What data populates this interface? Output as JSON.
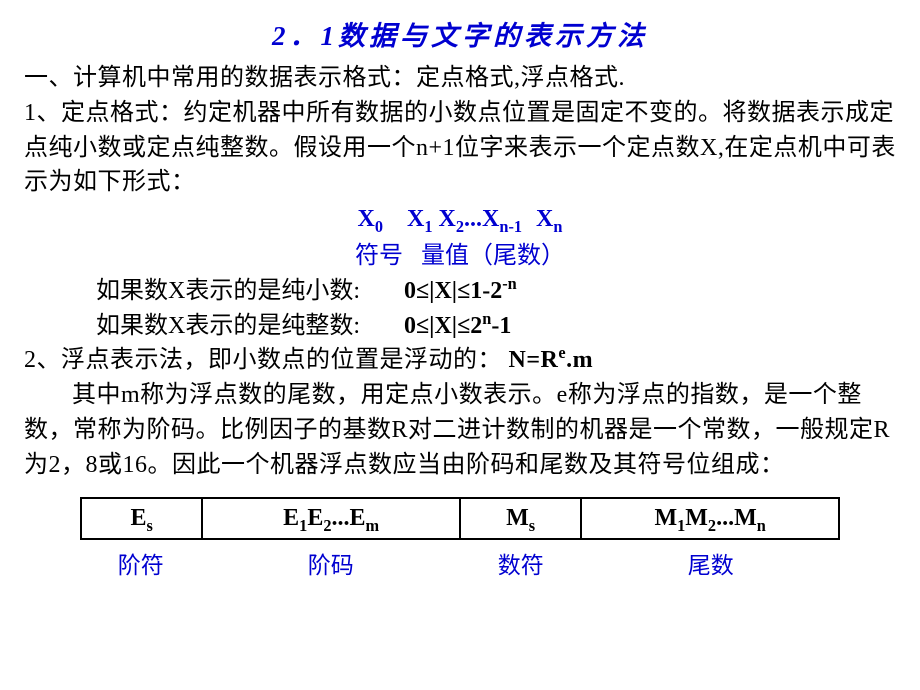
{
  "title": "2．1数据与文字的表示方法",
  "line1": "一、计算机中常用的数据表示格式：定点格式,浮点格式.",
  "line2": "1、定点格式：约定机器中所有数据的小数点位置是固定不变的。将数据表示成定点纯小数或定点纯整数。假设用一个n+1位字来表示一个定点数X,在定点机中可表示为如下形式：",
  "symbol_label": "符号",
  "value_label": "量值（尾数）",
  "pure_frac_label": "如果数X表示的是纯小数:",
  "pure_frac_range_a": "0≤|X|≤1-2",
  "pure_frac_range_exp": "-n",
  "pure_int_label": "如果数X表示的是纯整数:",
  "pure_int_range_a": "0≤|X|≤2",
  "pure_int_range_exp": "n",
  "pure_int_range_b": "-1",
  "line3_a": "2、浮点表示法，即小数点的位置是浮动的：",
  "line3_b": " N=R",
  "line3_exp": "e",
  "line3_c": ".m",
  "para2": "其中m称为浮点数的尾数，用定点小数表示。e称为浮点的指数，是一个整数，常称为阶码。比例因子的基数R对二进计数制的机器是一个常数，一般规定R为2，8或16。因此一个机器浮点数应当由阶码和尾数及其符号位组成：",
  "table": {
    "cells": [
      "E",
      "E",
      "M",
      "M"
    ],
    "sub1": "s",
    "cell2_s1": "1",
    "cell2_s2": "2",
    "cell2_s3": "m",
    "sub3": "s",
    "cell4_s1": "1",
    "cell4_s2": "2",
    "cell4_s3": "n",
    "col_widths": [
      "16%",
      "34%",
      "16%",
      "34%"
    ]
  },
  "captions": [
    "阶符",
    "阶码",
    "数符",
    "尾数"
  ],
  "colors": {
    "accent": "#0000d0",
    "text": "#000000",
    "bg": "#ffffff"
  }
}
